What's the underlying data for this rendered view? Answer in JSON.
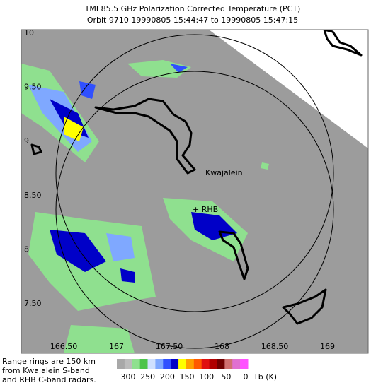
{
  "header": {
    "title": "TMI 85.5 GHz Polarization Corrected Temperature (PCT)",
    "subtitle": "Orbit 9710 19990805 15:44:47 to 19990805 15:47:15"
  },
  "map": {
    "lat_labels": [
      "10",
      "9.50",
      "9",
      "8.50",
      "8",
      "7.50"
    ],
    "lon_labels": [
      "166.50",
      "167",
      "167.50",
      "168",
      "168.50",
      "169"
    ],
    "places": [
      "Kwajalein",
      "+ RHB"
    ]
  },
  "footer": {
    "note": [
      "Range rings are 150 km",
      "from Kwajalein S-band",
      "and RHB C-band radars."
    ]
  },
  "colorbar": {
    "colors": [
      "#a8a8a8",
      "#bcbcbc",
      "#8fe08f",
      "#4cc44c",
      "#cfe0ff",
      "#7fa8ff",
      "#3050ff",
      "#0000c8",
      "#ffff00",
      "#ffa000",
      "#ff5a00",
      "#e01010",
      "#b00000",
      "#700000",
      "#d07070",
      "#e070d0",
      "#ff50ff"
    ],
    "labels": [
      "300",
      "250",
      "200",
      "150",
      "100",
      "50",
      "0"
    ],
    "unit": "Tb (K)"
  }
}
